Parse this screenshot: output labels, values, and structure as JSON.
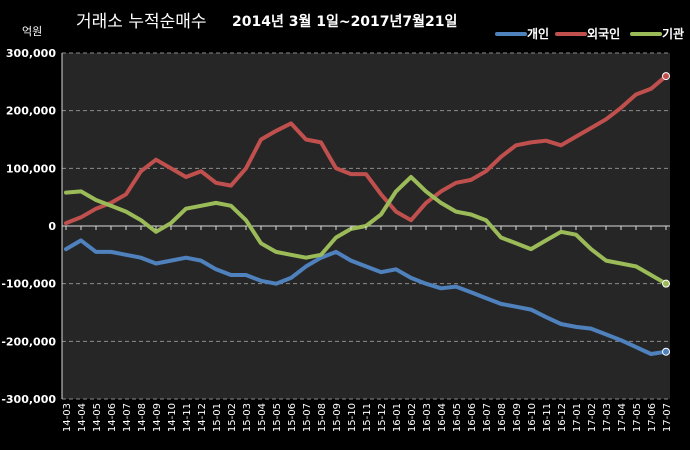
{
  "chart_data": {
    "type": "line",
    "title": "거래소 누적순매수",
    "subtitle": "2014년 3월 1일~2017년7월21일",
    "unit_label": "억원",
    "ylim": [
      -300000,
      300000
    ],
    "y_ticks": [
      "300,000",
      "200,000",
      "100,000",
      "0",
      "-100,000",
      "-200,000",
      "-300,000"
    ],
    "y_tick_values": [
      300000,
      200000,
      100000,
      0,
      -100000,
      -200000,
      -300000
    ],
    "grid": true,
    "legend_position": "top-right",
    "x": [
      "14-03",
      "14-04",
      "14-05",
      "14-06",
      "14-07",
      "14-08",
      "14-09",
      "14-10",
      "14-11",
      "14-12",
      "15-01",
      "15-02",
      "15-03",
      "15-04",
      "15-05",
      "15-06",
      "15-07",
      "15-08",
      "15-09",
      "15-10",
      "15-11",
      "15-12",
      "16-01",
      "16-02",
      "16-03",
      "16-04",
      "16-05",
      "16-06",
      "16-07",
      "16-08",
      "16-09",
      "16-10",
      "16-11",
      "16-12",
      "17-01",
      "17-02",
      "17-03",
      "17-04",
      "17-05",
      "17-06",
      "17-07"
    ],
    "series": [
      {
        "name": "개인",
        "color": "#4f81bd",
        "values": [
          -40000,
          -25000,
          -45000,
          -45000,
          -50000,
          -55000,
          -65000,
          -60000,
          -55000,
          -60000,
          -75000,
          -85000,
          -85000,
          -95000,
          -100000,
          -90000,
          -70000,
          -55000,
          -45000,
          -60000,
          -70000,
          -80000,
          -75000,
          -90000,
          -100000,
          -108000,
          -105000,
          -115000,
          -125000,
          -135000,
          -140000,
          -145000,
          -158000,
          -170000,
          -175000,
          -178000,
          -188000,
          -198000,
          -210000,
          -222000,
          -218000
        ]
      },
      {
        "name": "외국인",
        "color": "#c0504d",
        "values": [
          5000,
          15000,
          30000,
          40000,
          55000,
          95000,
          115000,
          100000,
          85000,
          95000,
          75000,
          70000,
          100000,
          150000,
          165000,
          178000,
          150000,
          145000,
          100000,
          90000,
          90000,
          55000,
          25000,
          10000,
          40000,
          60000,
          75000,
          80000,
          95000,
          120000,
          140000,
          145000,
          148000,
          140000,
          155000,
          170000,
          185000,
          205000,
          228000,
          238000,
          260000
        ]
      },
      {
        "name": "기관",
        "color": "#9bbb59",
        "values": [
          58000,
          60000,
          45000,
          35000,
          25000,
          10000,
          -10000,
          5000,
          30000,
          35000,
          40000,
          35000,
          10000,
          -30000,
          -45000,
          -50000,
          -55000,
          -50000,
          -20000,
          -5000,
          0,
          20000,
          60000,
          85000,
          60000,
          40000,
          25000,
          20000,
          10000,
          -20000,
          -30000,
          -40000,
          -25000,
          -10000,
          -15000,
          -40000,
          -60000,
          -65000,
          -70000,
          -85000,
          -100000
        ]
      }
    ]
  }
}
